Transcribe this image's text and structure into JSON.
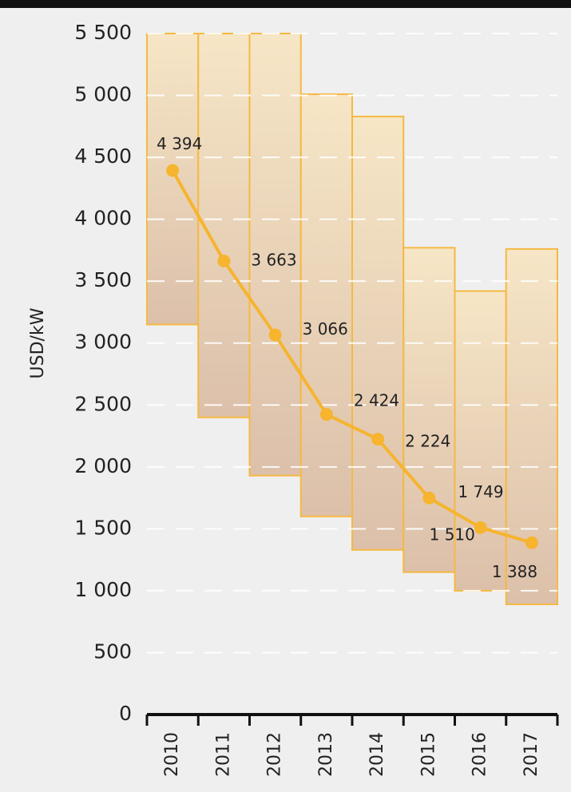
{
  "chart_data": {
    "type": "range_line",
    "y_label": "USD/kW",
    "categories": [
      "2010",
      "2011",
      "2012",
      "2013",
      "2014",
      "2015",
      "2016",
      "2017"
    ],
    "ranges": {
      "low": [
        3150,
        2400,
        1930,
        1600,
        1330,
        1150,
        1000,
        890
      ],
      "high": [
        5500,
        5500,
        5500,
        5010,
        4830,
        3770,
        3420,
        3760
      ],
      "color": "#f5b942"
    },
    "line": {
      "values": [
        4394,
        3663,
        3066,
        2424,
        2224,
        1749,
        1510,
        1388
      ],
      "value_labels": [
        "4 394",
        "3 663",
        "3 066",
        "2 424",
        "2 224",
        "1 749",
        "1 510",
        "1 388"
      ],
      "color": "#f6b42f"
    },
    "ylim": [
      0,
      5500
    ],
    "yticks": [
      0,
      500,
      {
        "value": 1000,
        "label": "1 000"
      },
      {
        "value": 1500,
        "label": "1 500"
      },
      {
        "value": 2000,
        "label": "2 000"
      },
      {
        "value": 2500,
        "label": "2 500"
      },
      {
        "value": 3000,
        "label": "3 000"
      },
      {
        "value": 3500,
        "label": "3 500"
      },
      {
        "value": 4000,
        "label": "4 000"
      },
      {
        "value": 4500,
        "label": "4 500"
      },
      {
        "value": 5000,
        "label": "5 000"
      },
      {
        "value": 5500,
        "label": "5 500"
      }
    ],
    "grid": true
  }
}
